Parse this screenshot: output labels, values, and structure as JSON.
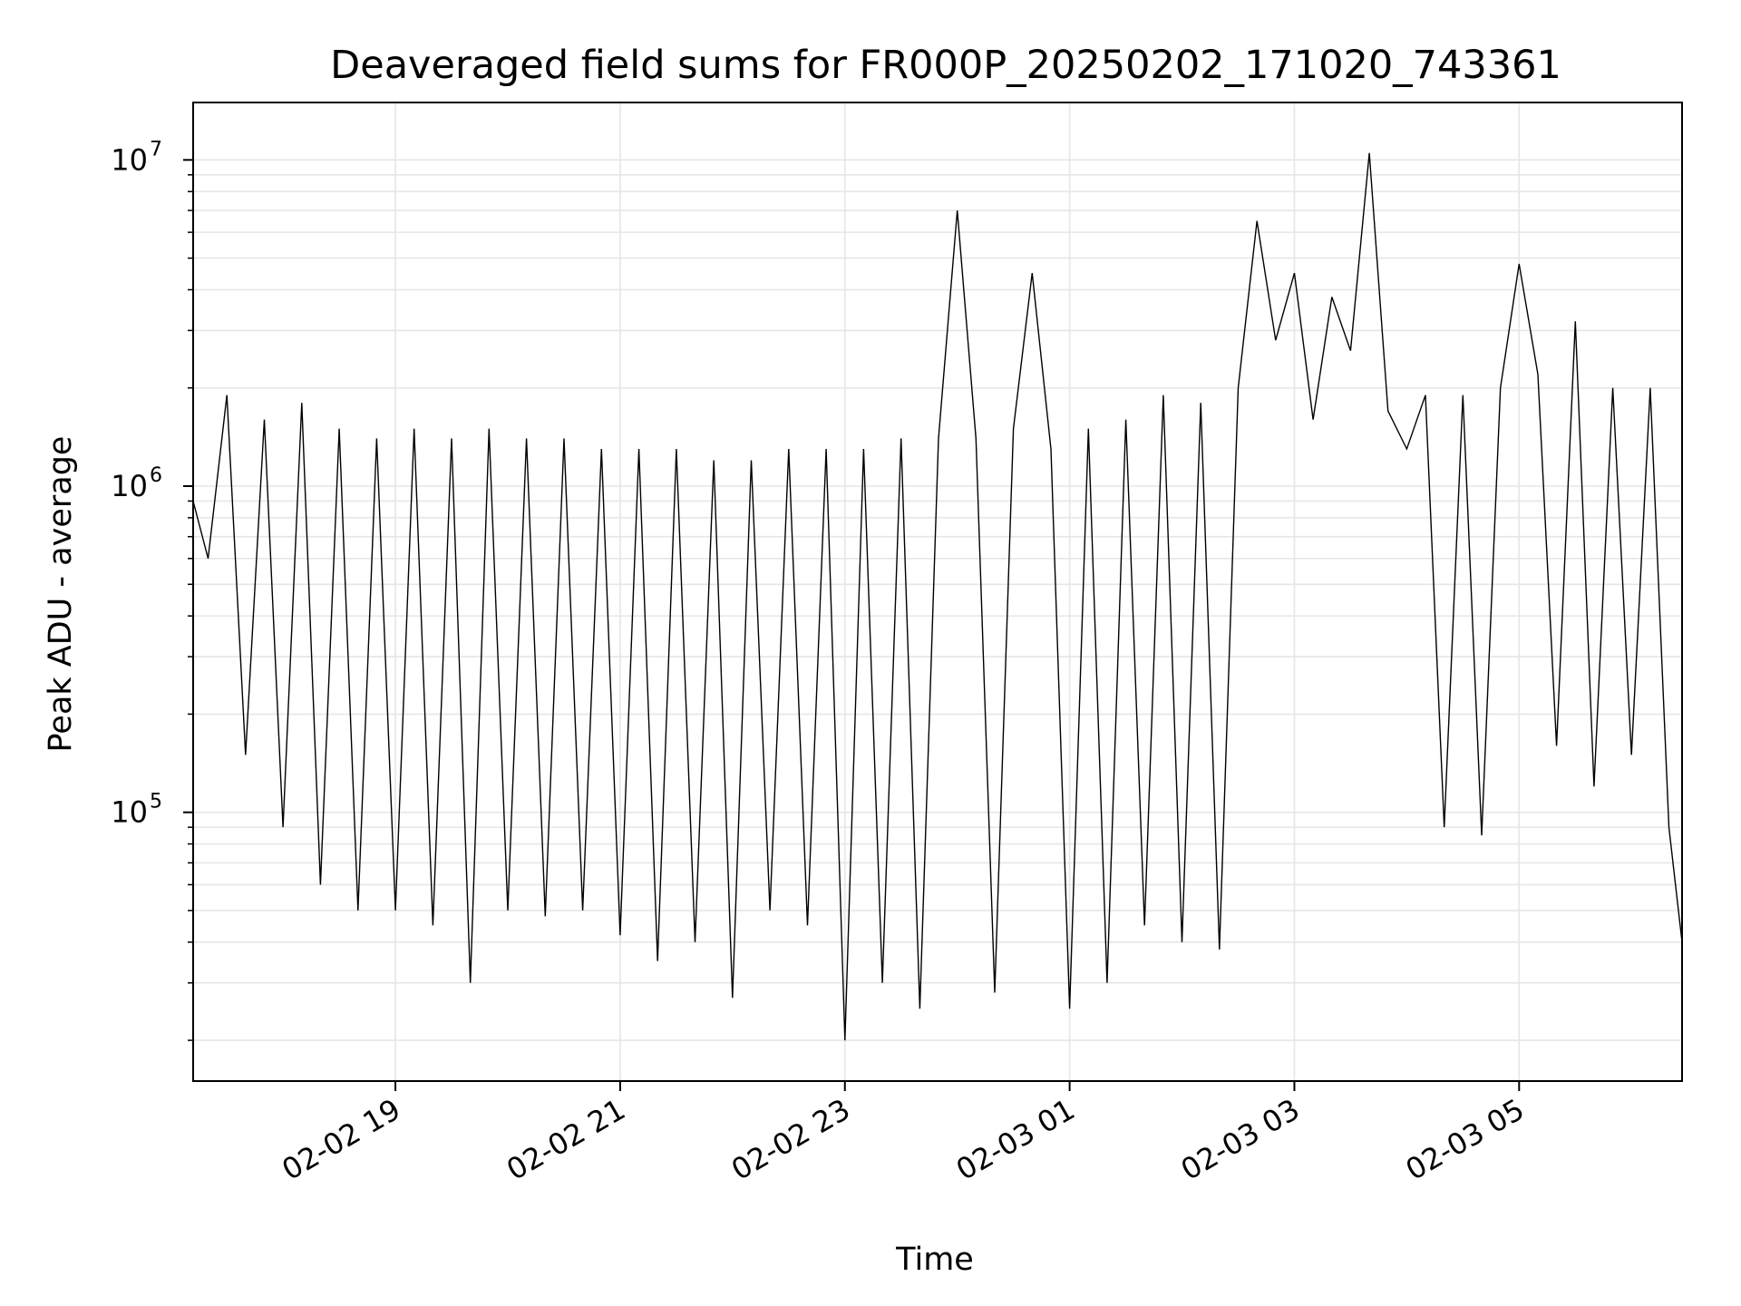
{
  "chart_data": {
    "type": "line",
    "title": "Deaveraged field sums for FR000P_20250202_171020_743361",
    "xlabel": "Time",
    "ylabel": "Peak ADU - average",
    "y_scale": "log",
    "x_range": [
      "2025-02-02 17:12",
      "2025-02-03 06:27"
    ],
    "ylim": [
      15000,
      15000000
    ],
    "x_ticks": [
      {
        "value": "2025-02-02 19:00",
        "label": "02-02 19"
      },
      {
        "value": "2025-02-02 21:00",
        "label": "02-02 21"
      },
      {
        "value": "2025-02-02 23:00",
        "label": "02-02 23"
      },
      {
        "value": "2025-02-03 01:00",
        "label": "02-03 01"
      },
      {
        "value": "2025-02-03 03:00",
        "label": "02-03 03"
      },
      {
        "value": "2025-02-03 05:00",
        "label": "02-03 05"
      }
    ],
    "y_ticks": [
      {
        "value": 100000,
        "base": "10",
        "exp": "5"
      },
      {
        "value": 1000000,
        "base": "10",
        "exp": "6"
      },
      {
        "value": 10000000,
        "base": "10",
        "exp": "7"
      }
    ],
    "grid": true,
    "line_color": "#000000",
    "grid_color": "#e6e6e6",
    "series": [
      {
        "x": [
          "2025-02-02 17:12",
          "2025-02-02 17:20",
          "2025-02-02 17:30",
          "2025-02-02 17:40",
          "2025-02-02 17:50",
          "2025-02-02 18:00",
          "2025-02-02 18:10",
          "2025-02-02 18:20",
          "2025-02-02 18:30",
          "2025-02-02 18:40",
          "2025-02-02 18:50",
          "2025-02-02 19:00",
          "2025-02-02 19:10",
          "2025-02-02 19:20",
          "2025-02-02 19:30",
          "2025-02-02 19:40",
          "2025-02-02 19:50",
          "2025-02-02 20:00",
          "2025-02-02 20:10",
          "2025-02-02 20:20",
          "2025-02-02 20:30",
          "2025-02-02 20:40",
          "2025-02-02 20:50",
          "2025-02-02 21:00",
          "2025-02-02 21:10",
          "2025-02-02 21:20",
          "2025-02-02 21:30",
          "2025-02-02 21:40",
          "2025-02-02 21:50",
          "2025-02-02 22:00",
          "2025-02-02 22:10",
          "2025-02-02 22:20",
          "2025-02-02 22:30",
          "2025-02-02 22:40",
          "2025-02-02 22:50",
          "2025-02-02 23:00",
          "2025-02-02 23:10",
          "2025-02-02 23:20",
          "2025-02-02 23:30",
          "2025-02-02 23:40",
          "2025-02-02 23:50",
          "2025-02-03 00:00",
          "2025-02-03 00:10",
          "2025-02-03 00:20",
          "2025-02-03 00:30",
          "2025-02-03 00:40",
          "2025-02-03 00:50",
          "2025-02-03 01:00",
          "2025-02-03 01:10",
          "2025-02-03 01:20",
          "2025-02-03 01:30",
          "2025-02-03 01:40",
          "2025-02-03 01:50",
          "2025-02-03 02:00",
          "2025-02-03 02:10",
          "2025-02-03 02:20",
          "2025-02-03 02:30",
          "2025-02-03 02:40",
          "2025-02-03 02:50",
          "2025-02-03 03:00",
          "2025-02-03 03:10",
          "2025-02-03 03:20",
          "2025-02-03 03:30",
          "2025-02-03 03:40",
          "2025-02-03 03:50",
          "2025-02-03 04:00",
          "2025-02-03 04:10",
          "2025-02-03 04:20",
          "2025-02-03 04:30",
          "2025-02-03 04:40",
          "2025-02-03 04:50",
          "2025-02-03 05:00",
          "2025-02-03 05:10",
          "2025-02-03 05:20",
          "2025-02-03 05:30",
          "2025-02-03 05:40",
          "2025-02-03 05:50",
          "2025-02-03 06:00",
          "2025-02-03 06:10",
          "2025-02-03 06:20",
          "2025-02-03 06:27"
        ],
        "y": [
          900000,
          600000,
          1900000,
          150000,
          1600000,
          90000,
          1800000,
          60000,
          1500000,
          50000,
          1400000,
          50000,
          1500000,
          45000,
          1400000,
          30000,
          1500000,
          50000,
          1400000,
          48000,
          1400000,
          50000,
          1300000,
          42000,
          1300000,
          35000,
          1300000,
          40000,
          1200000,
          27000,
          1200000,
          50000,
          1300000,
          45000,
          1300000,
          20000,
          1300000,
          30000,
          1400000,
          25000,
          1400000,
          7000000,
          1400000,
          28000,
          1500000,
          4500000,
          1300000,
          25000,
          1500000,
          30000,
          1600000,
          45000,
          1900000,
          40000,
          1800000,
          38000,
          2000000,
          6500000,
          2800000,
          4500000,
          1600000,
          3800000,
          2600000,
          10500000,
          1700000,
          1300000,
          1900000,
          90000,
          1900000,
          85000,
          2000000,
          4800000,
          2200000,
          160000,
          3200000,
          120000,
          2000000,
          150000,
          2000000,
          90000,
          40000
        ]
      }
    ]
  }
}
